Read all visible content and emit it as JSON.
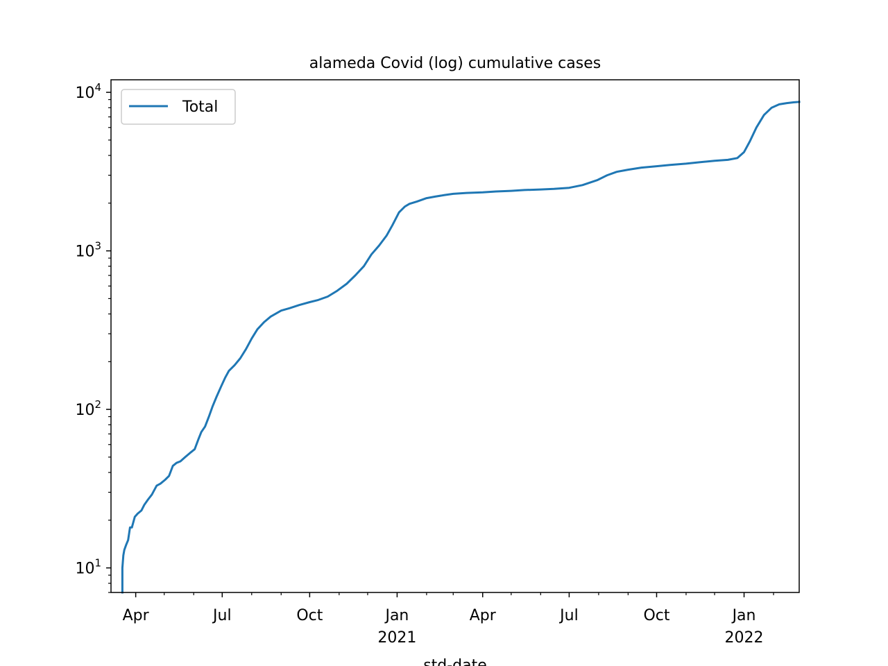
{
  "chart_data": {
    "type": "line",
    "title": "alameda Covid (log) cumulative cases",
    "xlabel": "std-date",
    "ylabel": "",
    "yscale": "log",
    "ylim": [
      7,
      12000
    ],
    "xlim": [
      "2020-03-06",
      "2022-02-28"
    ],
    "grid": false,
    "legend": {
      "position": "top-left",
      "entries": [
        "Total"
      ]
    },
    "colors": {
      "series": "#1f77b4",
      "axes": "#000000",
      "background": "#ffffff"
    },
    "x_ticks": [
      {
        "date": "2020-04-01",
        "label": "Apr",
        "sublabel": ""
      },
      {
        "date": "2020-07-01",
        "label": "Jul",
        "sublabel": ""
      },
      {
        "date": "2020-10-01",
        "label": "Oct",
        "sublabel": ""
      },
      {
        "date": "2021-01-01",
        "label": "Jan",
        "sublabel": "2021"
      },
      {
        "date": "2021-04-01",
        "label": "Apr",
        "sublabel": ""
      },
      {
        "date": "2021-07-01",
        "label": "Jul",
        "sublabel": ""
      },
      {
        "date": "2021-10-01",
        "label": "Oct",
        "sublabel": ""
      },
      {
        "date": "2022-01-01",
        "label": "Jan",
        "sublabel": "2022"
      }
    ],
    "y_ticks": [
      {
        "value": 10,
        "base": "10",
        "exp": "1"
      },
      {
        "value": 100,
        "base": "10",
        "exp": "2"
      },
      {
        "value": 1000,
        "base": "10",
        "exp": "3"
      },
      {
        "value": 10000,
        "base": "10",
        "exp": "4"
      }
    ],
    "series": [
      {
        "name": "Total",
        "x": [
          "2020-03-18",
          "2020-03-18",
          "2020-03-19",
          "2020-03-20",
          "2020-03-22",
          "2020-03-24",
          "2020-03-26",
          "2020-03-28",
          "2020-03-31",
          "2020-04-03",
          "2020-04-07",
          "2020-04-10",
          "2020-04-14",
          "2020-04-18",
          "2020-04-23",
          "2020-04-27",
          "2020-05-02",
          "2020-05-06",
          "2020-05-10",
          "2020-05-14",
          "2020-05-18",
          "2020-05-23",
          "2020-05-28",
          "2020-06-02",
          "2020-06-06",
          "2020-06-09",
          "2020-06-13",
          "2020-06-17",
          "2020-06-21",
          "2020-06-25",
          "2020-06-30",
          "2020-07-04",
          "2020-07-08",
          "2020-07-14",
          "2020-07-20",
          "2020-07-26",
          "2020-08-01",
          "2020-08-07",
          "2020-08-14",
          "2020-08-21",
          "2020-09-01",
          "2020-09-10",
          "2020-09-20",
          "2020-10-01",
          "2020-10-10",
          "2020-10-20",
          "2020-10-30",
          "2020-11-09",
          "2020-11-18",
          "2020-11-27",
          "2020-12-05",
          "2020-12-13",
          "2020-12-21",
          "2020-12-27",
          "2021-01-03",
          "2021-01-09",
          "2021-01-14",
          "2021-01-22",
          "2021-02-01",
          "2021-02-10",
          "2021-02-20",
          "2021-03-01",
          "2021-03-15",
          "2021-04-01",
          "2021-04-15",
          "2021-05-01",
          "2021-05-15",
          "2021-06-01",
          "2021-06-15",
          "2021-07-01",
          "2021-07-15",
          "2021-07-31",
          "2021-08-10",
          "2021-08-20",
          "2021-09-01",
          "2021-09-15",
          "2021-10-01",
          "2021-10-15",
          "2021-11-01",
          "2021-11-15",
          "2021-12-01",
          "2021-12-15",
          "2021-12-25",
          "2022-01-01",
          "2022-01-07",
          "2022-01-14",
          "2022-01-22",
          "2022-01-30",
          "2022-02-07",
          "2022-02-15",
          "2022-02-22",
          "2022-02-28"
        ],
        "values": [
          7,
          10,
          12,
          13,
          14,
          15,
          18,
          18,
          21,
          22,
          23,
          25,
          27,
          29,
          33,
          34,
          36,
          38,
          44,
          46,
          47,
          50,
          53,
          56,
          65,
          72,
          78,
          90,
          105,
          120,
          140,
          158,
          175,
          190,
          210,
          240,
          280,
          320,
          355,
          385,
          420,
          435,
          455,
          475,
          490,
          515,
          560,
          620,
          700,
          800,
          950,
          1080,
          1250,
          1450,
          1750,
          1900,
          1980,
          2050,
          2150,
          2200,
          2250,
          2290,
          2320,
          2340,
          2370,
          2390,
          2420,
          2440,
          2460,
          2500,
          2600,
          2800,
          3000,
          3150,
          3250,
          3350,
          3420,
          3480,
          3550,
          3620,
          3700,
          3750,
          3850,
          4200,
          4900,
          6000,
          7200,
          8000,
          8400,
          8550,
          8650,
          8700
        ]
      }
    ]
  }
}
